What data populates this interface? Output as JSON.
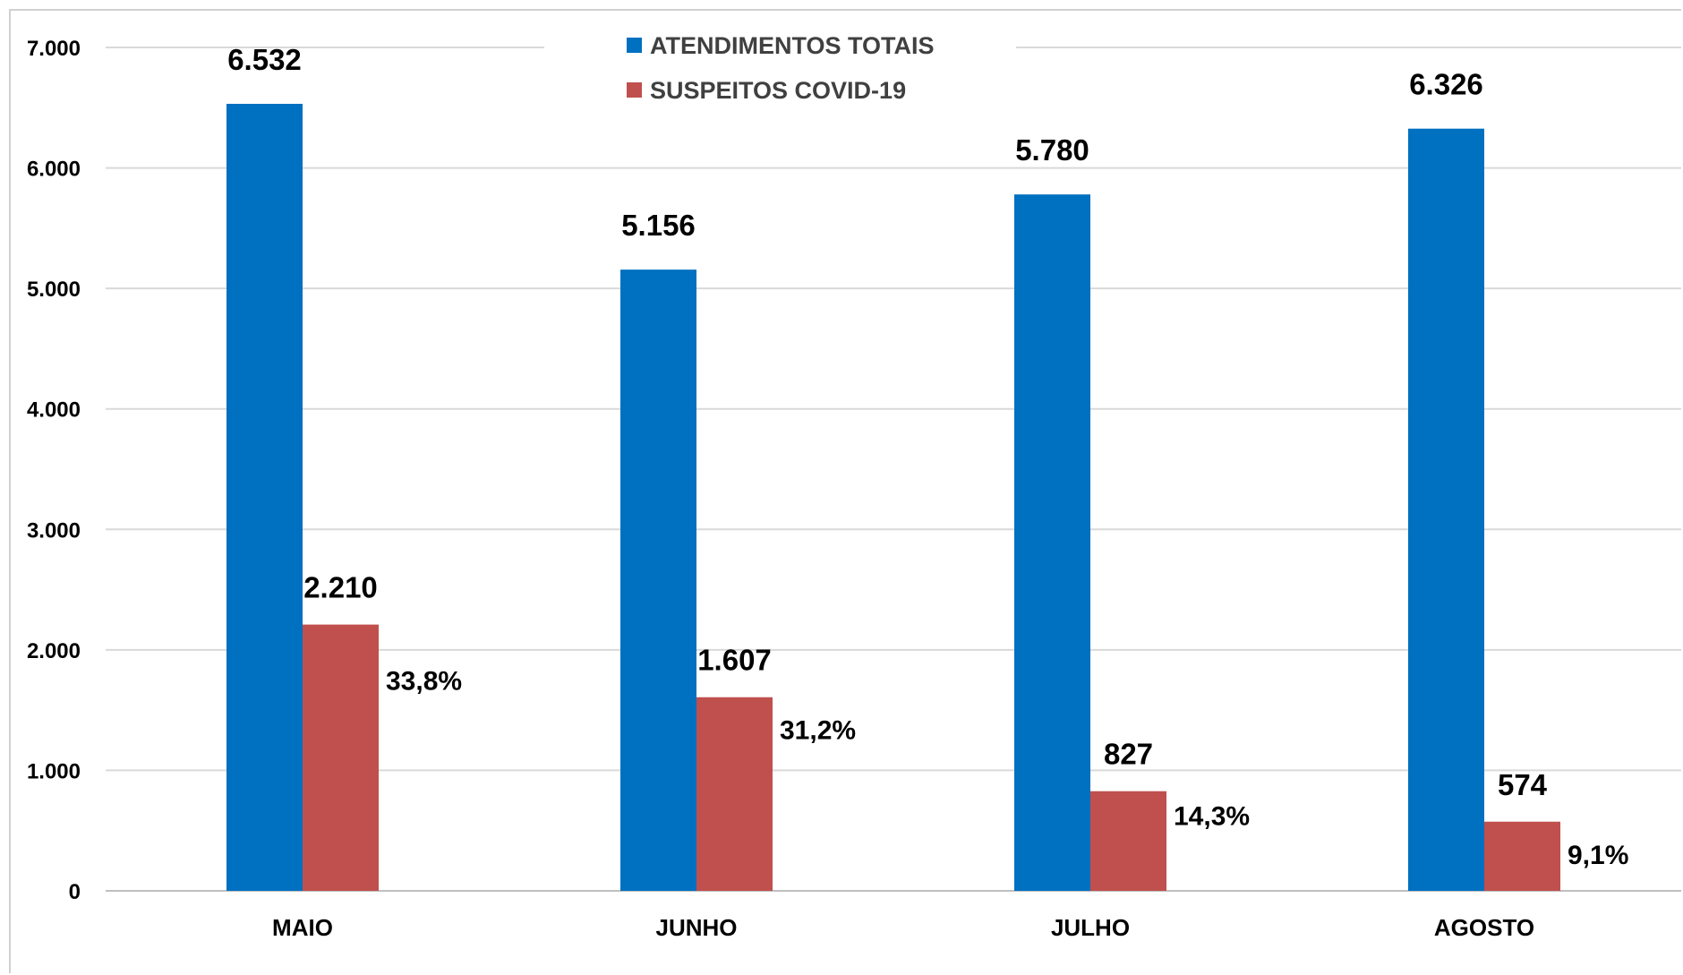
{
  "chart_data": {
    "type": "bar",
    "title": "",
    "xlabel": "",
    "ylabel": "",
    "categories": [
      "MAIO",
      "JUNHO",
      "JULHO",
      "AGOSTO"
    ],
    "series": [
      {
        "name": "ATENDIMENTOS TOTAIS",
        "color": "#0070C0",
        "values": [
          6532,
          5156,
          5780,
          6326
        ],
        "labels": [
          "6.532",
          "5.156",
          "5.780",
          "6.326"
        ]
      },
      {
        "name": "SUSPEITOS COVID-19",
        "color": "#C0504D",
        "values": [
          2210,
          1607,
          827,
          574
        ],
        "labels": [
          "2.210",
          "1.607",
          "827",
          "574"
        ],
        "percent_labels": [
          "33,8%",
          "31,2%",
          "14,3%",
          "9,1%"
        ]
      }
    ],
    "ylim": [
      0,
      7000
    ],
    "yticks": [
      0,
      1000,
      2000,
      3000,
      4000,
      5000,
      6000,
      7000
    ],
    "ytick_labels": [
      "0",
      "1.000",
      "2.000",
      "3.000",
      "4.000",
      "5.000",
      "6.000",
      "7.000"
    ],
    "grid": true,
    "legend_position": "top-center"
  }
}
